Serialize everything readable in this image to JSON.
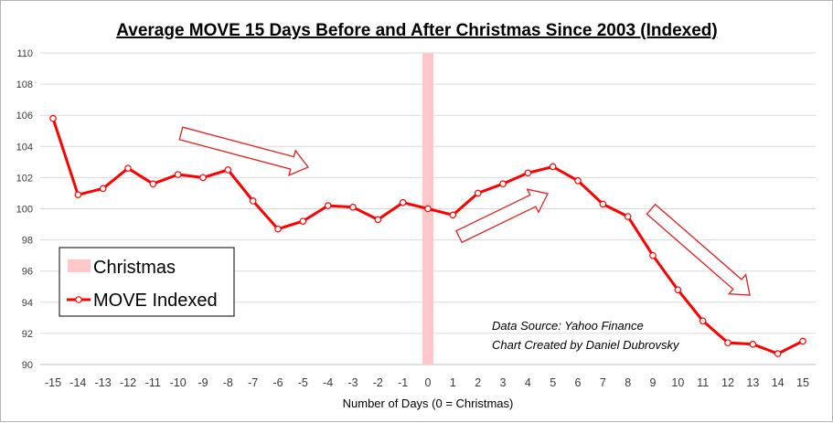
{
  "chart_data": {
    "type": "line",
    "title": "Average MOVE 15 Days Before and After Christmas Since 2003 (Indexed)",
    "xlabel": "Number of Days (0 = Christmas)",
    "ylabel": "",
    "x": [
      -15,
      -14,
      -13,
      -12,
      -11,
      -10,
      -9,
      -8,
      -7,
      -6,
      -5,
      -4,
      -3,
      -2,
      -1,
      0,
      1,
      2,
      3,
      4,
      5,
      6,
      7,
      8,
      9,
      10,
      11,
      12,
      13,
      14,
      15
    ],
    "x_tick_labels": [
      "-15",
      "-14",
      "-13",
      "-12",
      "-11",
      "-10",
      "-9",
      "-8",
      "-7",
      "-6",
      "-5",
      "-4",
      "-3",
      "-2",
      "-1",
      "0",
      "1",
      "2",
      "3",
      "4",
      "5",
      "6",
      "7",
      "8",
      "9",
      "10",
      "11",
      "12",
      "13",
      "14",
      "15"
    ],
    "y_ticks": [
      90,
      92,
      94,
      96,
      98,
      100,
      102,
      104,
      106,
      108,
      110
    ],
    "y_tick_labels": [
      "90",
      "92",
      "94",
      "96",
      "98",
      "100",
      "102",
      "104",
      "106",
      "108",
      "110"
    ],
    "ylim": [
      90,
      110
    ],
    "grid": true,
    "series": [
      {
        "name": "MOVE Indexed",
        "color": "#ff0000",
        "values": [
          105.8,
          100.9,
          101.3,
          102.6,
          101.6,
          102.2,
          102.0,
          102.5,
          100.5,
          98.7,
          99.2,
          100.2,
          100.1,
          99.3,
          100.4,
          100.0,
          99.6,
          101.0,
          101.6,
          102.3,
          102.7,
          101.8,
          100.3,
          99.5,
          97.0,
          94.8,
          92.8,
          91.4,
          91.3,
          90.7,
          91.5
        ]
      }
    ],
    "highlight": {
      "name": "Christmas",
      "x": 0,
      "color": "#ffc7c7"
    },
    "legend": {
      "placement": "lower-left",
      "entries": [
        "Christmas",
        "MOVE Indexed"
      ]
    },
    "annotations": [
      "Data Source: Yahoo Finance",
      "Chart Created by Daniel Dubrovsky"
    ],
    "arrow_color": "#e02020"
  }
}
